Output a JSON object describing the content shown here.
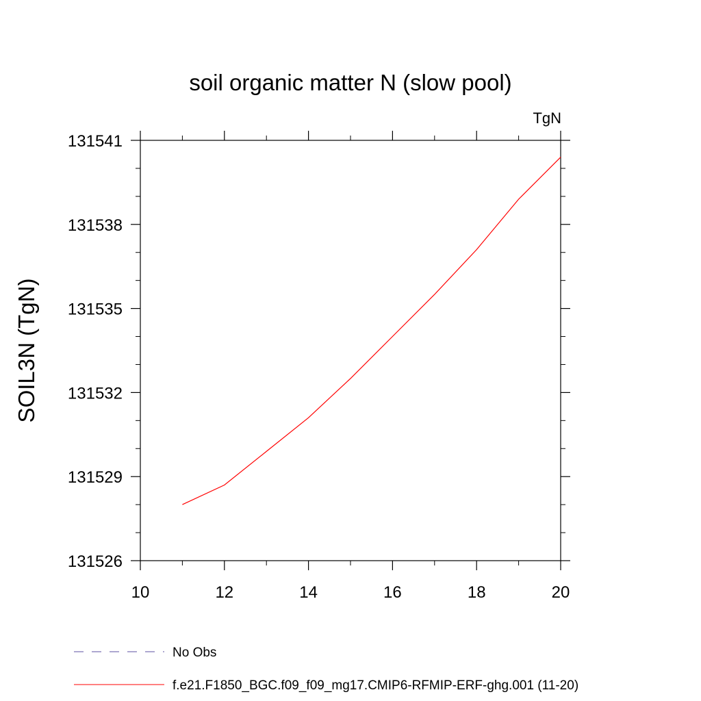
{
  "chart_data": {
    "type": "line",
    "title": "soil organic matter N (slow pool)",
    "units_label": "TgN",
    "ylabel": "SOIL3N  (TgN)",
    "xlabel": "",
    "xlim": [
      10,
      20
    ],
    "ylim": [
      131526,
      131541
    ],
    "x_ticks": [
      10,
      12,
      14,
      16,
      18,
      20
    ],
    "x_tick_labels": [
      "10",
      "12",
      "14",
      "16",
      "18",
      "20"
    ],
    "x_minor_ticks": [
      11,
      13,
      15,
      17,
      19
    ],
    "y_ticks": [
      131526,
      131529,
      131532,
      131535,
      131538,
      131541
    ],
    "y_tick_labels": [
      "131526",
      "131529",
      "131532",
      "131535",
      "131538",
      "131541"
    ],
    "y_minor_ticks": [
      131527,
      131528,
      131530,
      131531,
      131533,
      131534,
      131536,
      131537,
      131539,
      131540
    ],
    "grid": false,
    "legend_position": "bottom",
    "legend": [
      {
        "label": "No Obs",
        "color": "#5b4fa0",
        "style": "dashed"
      },
      {
        "label": "f.e21.F1850_BGC.f09_f09_mg17.CMIP6-RFMIP-ERF-ghg.001 (11-20)",
        "color": "#ff0000",
        "style": "solid"
      }
    ],
    "series": [
      {
        "color": "#ff0000",
        "x": [
          11,
          12,
          13,
          14,
          15,
          16,
          17,
          18,
          19,
          20
        ],
        "y": [
          131528.0,
          131528.7,
          131529.9,
          131531.1,
          131532.5,
          131534.0,
          131535.5,
          131537.1,
          131538.9,
          131540.4
        ]
      }
    ]
  }
}
